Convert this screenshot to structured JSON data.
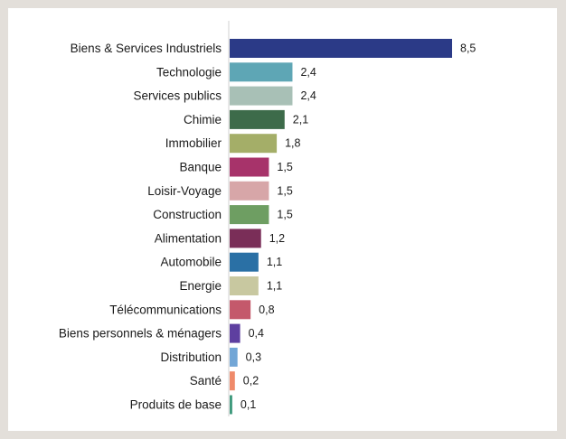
{
  "chart_data": {
    "type": "bar",
    "orientation": "horizontal",
    "title": "",
    "xlabel": "",
    "ylabel": "",
    "grid": false,
    "legend": "none",
    "xlim": [
      0,
      8.5
    ],
    "categories": [
      "Biens & Services Industriels",
      "Technologie",
      "Services publics",
      "Chimie",
      "Immobilier",
      "Banque",
      "Loisir-Voyage",
      "Construction",
      "Alimentation",
      "Automobile",
      "Energie",
      "Télécommunications",
      "Biens personnels & ménagers",
      "Distribution",
      "Santé",
      "Produits de base"
    ],
    "values": [
      8.5,
      2.4,
      2.4,
      2.1,
      1.8,
      1.5,
      1.5,
      1.5,
      1.2,
      1.1,
      1.1,
      0.8,
      0.4,
      0.3,
      0.2,
      0.1
    ],
    "value_labels": [
      "8,5",
      "2,4",
      "2,4",
      "2,1",
      "1,8",
      "1,5",
      "1,5",
      "1,5",
      "1,2",
      "1,1",
      "1,1",
      "0,8",
      "0,4",
      "0,3",
      "0,2",
      "0,1"
    ],
    "colors": [
      "#2b3a87",
      "#5ea6b5",
      "#a8c0b6",
      "#3d6b4a",
      "#a4ae68",
      "#a7336a",
      "#d7a6a8",
      "#6e9e62",
      "#7a2e58",
      "#2a70a5",
      "#c8c8a0",
      "#c4596b",
      "#5e3fa0",
      "#72a6d6",
      "#ef8a6a",
      "#3f9a7c"
    ]
  }
}
